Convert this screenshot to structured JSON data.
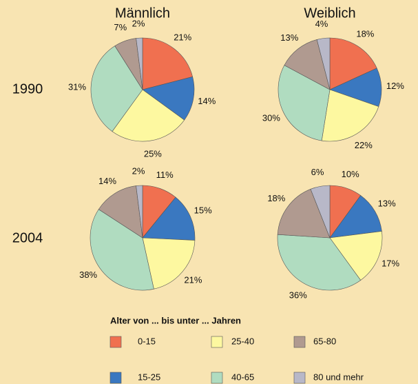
{
  "columns": [
    "Männlich",
    "Weiblich"
  ],
  "rows": [
    "1990",
    "2004"
  ],
  "legend": {
    "title": "Alter von ... bis unter ... Jahren",
    "categories": [
      "0-15",
      "15-25",
      "25-40",
      "40-65",
      "65-80",
      "80 und mehr"
    ],
    "colors": [
      "#f07050",
      "#3a78c0",
      "#fdf8a0",
      "#b0dcc0",
      "#b09a90",
      "#b8b8c8"
    ]
  },
  "chart_data": [
    {
      "type": "pie",
      "values": [
        21,
        14,
        25,
        31,
        7,
        2
      ],
      "value_labels": [
        "21%",
        "14%",
        "25%",
        "31%",
        "7%",
        "2%"
      ]
    },
    {
      "type": "pie",
      "values": [
        18,
        12,
        22,
        30,
        13,
        4
      ],
      "value_labels": [
        "18%",
        "12%",
        "22%",
        "30%",
        "13%",
        "4%"
      ]
    },
    {
      "type": "pie",
      "values": [
        11,
        15,
        21,
        38,
        14,
        2
      ],
      "value_labels": [
        "11%",
        "15%",
        "21%",
        "38%",
        "14%",
        "2%"
      ]
    },
    {
      "type": "pie",
      "values": [
        10,
        13,
        17,
        36,
        18,
        6
      ],
      "value_labels": [
        "10%",
        "13%",
        "17%",
        "36%",
        "18%",
        "6%"
      ]
    }
  ]
}
